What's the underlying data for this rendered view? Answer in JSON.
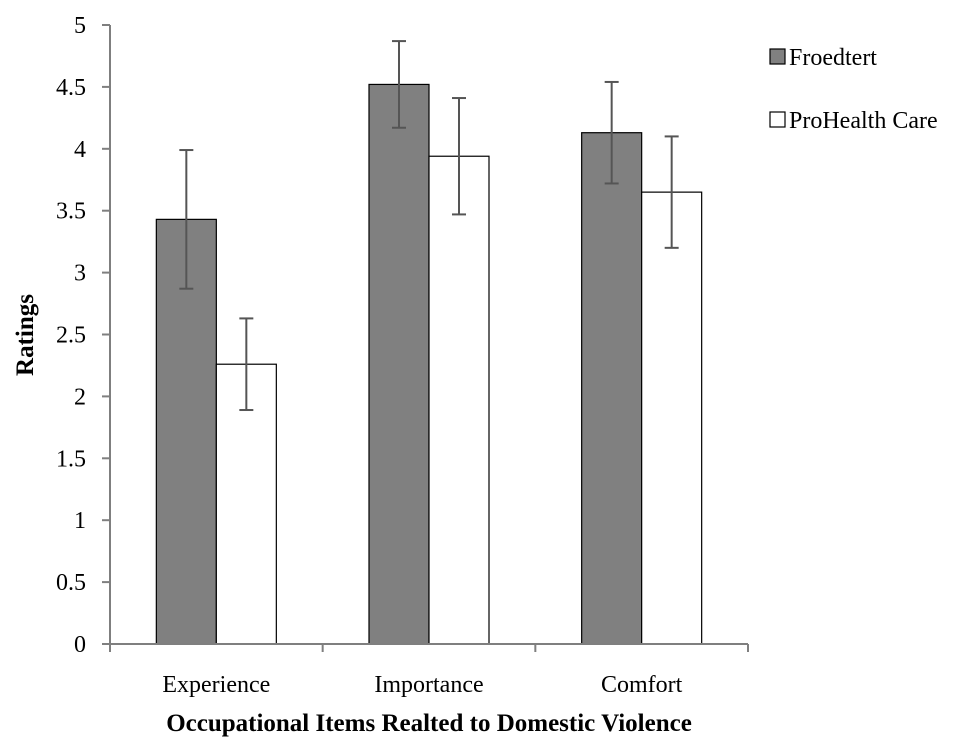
{
  "chart_data": {
    "type": "bar",
    "title": "",
    "xlabel": "Occupational Items Realted to Domestic Violence",
    "ylabel": "Ratings",
    "categories": [
      "Experience",
      "Importance",
      "Comfort"
    ],
    "series": [
      {
        "name": "Froedtert",
        "values": [
          3.43,
          4.52,
          4.13
        ],
        "error": [
          0.56,
          0.35,
          0.41
        ],
        "color": "#808080"
      },
      {
        "name": "ProHealth Care",
        "values": [
          2.26,
          3.94,
          3.65
        ],
        "error": [
          0.37,
          0.47,
          0.45
        ],
        "color": "#ffffff"
      }
    ],
    "ylim": [
      0,
      5
    ],
    "yticks": [
      "0",
      "0.5",
      "1",
      "1.5",
      "2",
      "2.5",
      "3",
      "3.5",
      "4",
      "4.5",
      "5"
    ],
    "grid": false,
    "legend_position": "top-right"
  }
}
